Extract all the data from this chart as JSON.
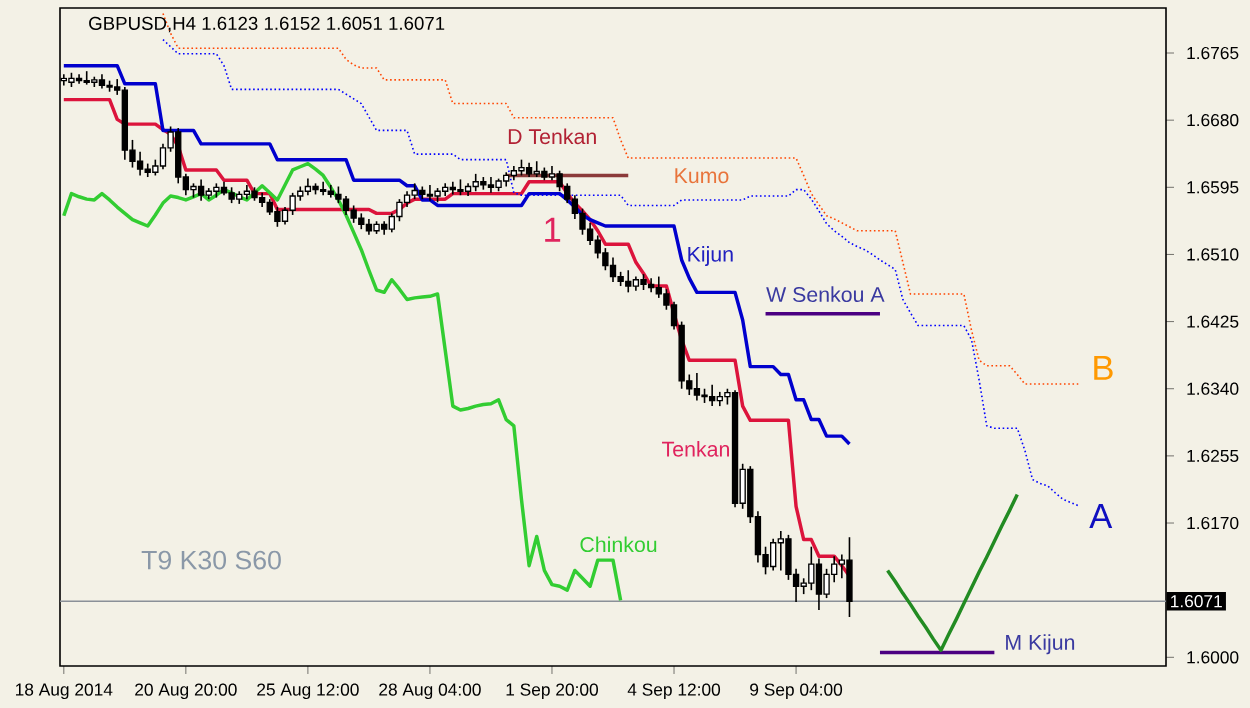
{
  "chart_data": {
    "type": "candlestick",
    "title": "GBPUSD,H4  1.6123 1.6152 1.6051 1.6071",
    "categories": [
      "18 Aug 2014",
      null,
      null,
      null,
      null,
      null,
      null,
      null,
      null,
      null,
      null,
      null,
      null,
      null,
      null,
      null,
      "20 Aug 20:00",
      null,
      null,
      null,
      null,
      null,
      null,
      null,
      null,
      null,
      null,
      null,
      null,
      null,
      null,
      null,
      "25 Aug 12:00",
      null,
      null,
      null,
      null,
      null,
      null,
      null,
      null,
      null,
      null,
      null,
      null,
      null,
      null,
      null,
      "28 Aug 04:00",
      null,
      null,
      null,
      null,
      null,
      null,
      null,
      null,
      null,
      null,
      null,
      null,
      null,
      null,
      null,
      "1 Sep 20:00",
      null,
      null,
      null,
      null,
      null,
      null,
      null,
      null,
      null,
      null,
      null,
      null,
      null,
      null,
      null,
      "4 Sep 12:00",
      null,
      null,
      null,
      null,
      null,
      null,
      null,
      null,
      null,
      null,
      null,
      null,
      null,
      null,
      null,
      "9 Sep 04:00",
      null,
      null,
      null,
      null,
      null,
      null,
      null,
      null,
      null,
      null,
      null,
      null,
      null,
      null,
      null,
      null,
      null,
      null,
      null,
      null,
      null,
      null,
      null,
      null,
      null,
      null,
      null,
      null,
      null,
      null,
      null,
      null,
      null,
      null,
      null,
      null,
      null,
      null,
      null,
      null,
      null,
      null,
      null,
      null,
      null,
      null,
      null,
      null
    ],
    "ohlc": [
      [
        1.673,
        1.6738,
        1.6724,
        1.6733
      ],
      [
        1.6728,
        1.674,
        1.6722,
        1.6733
      ],
      [
        1.6733,
        1.6738,
        1.6726,
        1.673
      ],
      [
        1.673,
        1.6742,
        1.6725,
        1.6728
      ],
      [
        1.6728,
        1.6735,
        1.6722,
        1.6731
      ],
      [
        1.6731,
        1.6738,
        1.672,
        1.6724
      ],
      [
        1.6724,
        1.673,
        1.6716,
        1.6722
      ],
      [
        1.6722,
        1.6732,
        1.6712,
        1.6718
      ],
      [
        1.6718,
        1.6722,
        1.663,
        1.6642
      ],
      [
        1.6642,
        1.6655,
        1.662,
        1.6628
      ],
      [
        1.6628,
        1.664,
        1.661,
        1.6618
      ],
      [
        1.6618,
        1.6625,
        1.6608,
        1.6614
      ],
      [
        1.6614,
        1.663,
        1.661,
        1.6622
      ],
      [
        1.6622,
        1.665,
        1.6618,
        1.6645
      ],
      [
        1.6645,
        1.6672,
        1.664,
        1.6665
      ],
      [
        1.6665,
        1.667,
        1.66,
        1.6608
      ],
      [
        1.6608,
        1.6612,
        1.6585,
        1.6592
      ],
      [
        1.6592,
        1.66,
        1.6582,
        1.6596
      ],
      [
        1.6596,
        1.6605,
        1.6578,
        1.6585
      ],
      [
        1.6585,
        1.6594,
        1.658,
        1.659
      ],
      [
        1.659,
        1.66,
        1.6582,
        1.6595
      ],
      [
        1.6595,
        1.6602,
        1.6585,
        1.6588
      ],
      [
        1.6588,
        1.6595,
        1.6575,
        1.658
      ],
      [
        1.658,
        1.659,
        1.6574,
        1.6586
      ],
      [
        1.6586,
        1.6598,
        1.658,
        1.659
      ],
      [
        1.659,
        1.6595,
        1.6578,
        1.6582
      ],
      [
        1.6582,
        1.6588,
        1.657,
        1.6576
      ],
      [
        1.6576,
        1.658,
        1.656,
        1.6564
      ],
      [
        1.6564,
        1.657,
        1.6545,
        1.6552
      ],
      [
        1.6552,
        1.657,
        1.6548,
        1.6566
      ],
      [
        1.6566,
        1.6588,
        1.656,
        1.6584
      ],
      [
        1.6584,
        1.6596,
        1.6578,
        1.659
      ],
      [
        1.659,
        1.6606,
        1.6585,
        1.6596
      ],
      [
        1.6596,
        1.66,
        1.6586,
        1.6592
      ],
      [
        1.6592,
        1.6602,
        1.6585,
        1.659
      ],
      [
        1.659,
        1.6598,
        1.6582,
        1.6586
      ],
      [
        1.6586,
        1.6596,
        1.6575,
        1.658
      ],
      [
        1.658,
        1.6584,
        1.656,
        1.6566
      ],
      [
        1.6566,
        1.6572,
        1.655,
        1.6556
      ],
      [
        1.6556,
        1.6562,
        1.6542,
        1.6548
      ],
      [
        1.6548,
        1.6555,
        1.6535,
        1.654
      ],
      [
        1.654,
        1.6552,
        1.6536,
        1.6548
      ],
      [
        1.6548,
        1.6552,
        1.6535,
        1.6542
      ],
      [
        1.6542,
        1.6562,
        1.6538,
        1.6558
      ],
      [
        1.6558,
        1.658,
        1.6552,
        1.6576
      ],
      [
        1.6576,
        1.659,
        1.657,
        1.6585
      ],
      [
        1.6585,
        1.66,
        1.658,
        1.6591
      ],
      [
        1.6591,
        1.6596,
        1.658,
        1.6586
      ],
      [
        1.6586,
        1.6598,
        1.6578,
        1.6584
      ],
      [
        1.6584,
        1.6594,
        1.6576,
        1.659
      ],
      [
        1.659,
        1.66,
        1.6584,
        1.6595
      ],
      [
        1.6595,
        1.6602,
        1.6586,
        1.6592
      ],
      [
        1.6592,
        1.6605,
        1.6585,
        1.659
      ],
      [
        1.659,
        1.66,
        1.6584,
        1.6596
      ],
      [
        1.6596,
        1.6612,
        1.659,
        1.6602
      ],
      [
        1.6602,
        1.6608,
        1.6592,
        1.6598
      ],
      [
        1.6598,
        1.6608,
        1.6588,
        1.6595
      ],
      [
        1.6595,
        1.6606,
        1.659,
        1.6603
      ],
      [
        1.6603,
        1.6614,
        1.6596,
        1.661
      ],
      [
        1.661,
        1.6622,
        1.6604,
        1.6616
      ],
      [
        1.6616,
        1.663,
        1.661,
        1.662
      ],
      [
        1.662,
        1.6626,
        1.6608,
        1.6612
      ],
      [
        1.6612,
        1.6628,
        1.6608,
        1.6615
      ],
      [
        1.6615,
        1.662,
        1.6604,
        1.6608
      ],
      [
        1.6608,
        1.6622,
        1.6604,
        1.6612
      ],
      [
        1.6612,
        1.6616,
        1.659,
        1.6596
      ],
      [
        1.6596,
        1.66,
        1.6575,
        1.658
      ],
      [
        1.658,
        1.6585,
        1.6555,
        1.6562
      ],
      [
        1.6562,
        1.6568,
        1.6535,
        1.6542
      ],
      [
        1.6542,
        1.655,
        1.6522,
        1.6528
      ],
      [
        1.6528,
        1.6534,
        1.6505,
        1.6512
      ],
      [
        1.6512,
        1.6518,
        1.649,
        1.6496
      ],
      [
        1.6496,
        1.6506,
        1.6475,
        1.6482
      ],
      [
        1.6482,
        1.6488,
        1.647,
        1.6476
      ],
      [
        1.6476,
        1.649,
        1.6462,
        1.647
      ],
      [
        1.647,
        1.6482,
        1.6464,
        1.6478
      ],
      [
        1.6478,
        1.6485,
        1.6465,
        1.6472
      ],
      [
        1.6472,
        1.648,
        1.6462,
        1.6468
      ],
      [
        1.6468,
        1.6482,
        1.6455,
        1.646
      ],
      [
        1.646,
        1.6466,
        1.644,
        1.6446
      ],
      [
        1.6446,
        1.645,
        1.6415,
        1.642
      ],
      [
        1.642,
        1.6425,
        1.634,
        1.635
      ],
      [
        1.635,
        1.6358,
        1.6332,
        1.634
      ],
      [
        1.634,
        1.636,
        1.6325,
        1.6332
      ],
      [
        1.6332,
        1.634,
        1.6322,
        1.633
      ],
      [
        1.633,
        1.6345,
        1.6318,
        1.6325
      ],
      [
        1.6325,
        1.6336,
        1.6318,
        1.633
      ],
      [
        1.633,
        1.634,
        1.632,
        1.6335
      ],
      [
        1.6335,
        1.6338,
        1.619,
        1.6195
      ],
      [
        1.6195,
        1.6245,
        1.6188,
        1.6238
      ],
      [
        1.6238,
        1.6242,
        1.617,
        1.6178
      ],
      [
        1.6178,
        1.6185,
        1.612,
        1.613
      ],
      [
        1.613,
        1.614,
        1.6105,
        1.6115
      ],
      [
        1.6115,
        1.615,
        1.611,
        1.6145
      ],
      [
        1.6145,
        1.616,
        1.611,
        1.615
      ],
      [
        1.615,
        1.6155,
        1.6098,
        1.6105
      ],
      [
        1.6105,
        1.6112,
        1.607,
        1.609
      ],
      [
        1.609,
        1.61,
        1.608,
        1.6094
      ],
      [
        1.6094,
        1.614,
        1.6085,
        1.6118
      ],
      [
        1.6118,
        1.6125,
        1.606,
        1.608
      ],
      [
        1.608,
        1.6112,
        1.6075,
        1.6105
      ],
      [
        1.6105,
        1.6128,
        1.6095,
        1.6118
      ],
      [
        1.6118,
        1.613,
        1.61,
        1.6123
      ],
      [
        1.6123,
        1.6152,
        1.6051,
        1.6071
      ],
      null,
      null,
      null,
      null,
      null,
      null,
      null,
      null,
      null,
      null,
      null,
      null,
      null,
      null,
      null,
      null,
      null,
      null,
      null,
      null,
      null,
      null,
      null,
      null,
      null,
      null,
      null,
      null,
      null,
      null,
      null,
      null,
      null,
      null,
      null,
      null,
      null,
      null,
      null,
      null,
      null
    ],
    "series": [
      {
        "type": "line",
        "color": "#dc143c",
        "values": [
          1.6706,
          1.6706,
          1.6706,
          1.6706,
          1.6706,
          1.6706,
          1.6706,
          1.6681,
          1.6675,
          1.6675,
          1.6675,
          1.6675,
          1.6675,
          1.6668,
          1.6662,
          1.6647,
          1.6617,
          1.6617,
          1.6617,
          1.6617,
          1.6617,
          1.6604,
          1.6604,
          1.6604,
          1.6604,
          1.6587,
          1.6587,
          1.6587,
          1.6567,
          1.6567,
          1.6567,
          1.6567,
          1.6567,
          1.6567,
          1.6567,
          1.6567,
          1.6567,
          1.6567,
          1.6567,
          1.6567,
          1.6567,
          1.6562,
          1.6562,
          1.6562,
          1.6567,
          1.6575,
          1.658,
          1.658,
          1.658,
          1.658,
          1.658,
          1.6587,
          1.6587,
          1.6587,
          1.6587,
          1.6587,
          1.6587,
          1.6587,
          1.6587,
          1.6587,
          1.6587,
          1.6602,
          1.6602,
          1.6602,
          1.6602,
          1.6602,
          1.6587,
          1.6575,
          1.6565,
          1.6554,
          1.654,
          1.6523,
          1.6523,
          1.6523,
          1.6523,
          1.65,
          1.6486,
          1.647,
          1.647,
          1.647,
          1.6435,
          1.6402,
          1.6376,
          1.6376,
          1.6376,
          1.6376,
          1.6376,
          1.6376,
          1.6376,
          1.6318,
          1.63,
          1.63,
          1.63,
          1.63,
          1.63,
          1.63,
          1.6191,
          1.6149,
          1.6149,
          1.6128,
          1.6128,
          1.6128,
          1.6116,
          1.6103,
          null,
          null,
          null,
          null,
          null,
          null,
          null,
          null,
          null,
          null,
          null,
          null,
          null,
          null,
          null,
          null,
          null,
          null,
          null,
          null,
          null,
          null,
          null,
          null,
          null,
          null,
          null,
          null,
          null,
          null,
          null,
          null,
          null,
          null,
          null,
          null,
          null,
          null,
          null,
          null,
          null
        ]
      },
      {
        "type": "line",
        "color": "#0000cd",
        "values": [
          1.6749,
          1.6749,
          1.6749,
          1.6749,
          1.6749,
          1.6749,
          1.6749,
          1.6749,
          1.6726,
          1.6726,
          1.6726,
          1.6726,
          1.6726,
          1.6667,
          1.6667,
          1.6667,
          1.6667,
          1.6667,
          1.665,
          1.665,
          1.665,
          1.665,
          1.665,
          1.665,
          1.665,
          1.665,
          1.665,
          1.665,
          1.663,
          1.663,
          1.663,
          1.663,
          1.663,
          1.663,
          1.663,
          1.663,
          1.663,
          1.663,
          1.6604,
          1.6604,
          1.6604,
          1.6604,
          1.6604,
          1.6604,
          1.6604,
          1.6597,
          1.6597,
          1.6579,
          1.6579,
          1.6572,
          1.6572,
          1.6572,
          1.6572,
          1.6572,
          1.6572,
          1.6572,
          1.6572,
          1.6572,
          1.6572,
          1.6572,
          1.6572,
          1.6587,
          1.6587,
          1.6587,
          1.6587,
          1.6587,
          1.6579,
          1.657,
          1.656,
          1.6554,
          1.655,
          1.6546,
          1.6546,
          1.6546,
          1.6546,
          1.6546,
          1.6546,
          1.6546,
          1.6546,
          1.6546,
          1.6546,
          1.6503,
          1.648,
          1.6462,
          1.6462,
          1.6462,
          1.6462,
          1.6462,
          1.6462,
          1.6427,
          1.6368,
          1.6368,
          1.6368,
          1.6368,
          1.6358,
          1.6358,
          1.6326,
          1.6326,
          1.6301,
          1.6301,
          1.628,
          1.628,
          1.628,
          1.627,
          null,
          null,
          null,
          null,
          null,
          null,
          null,
          null,
          null,
          null,
          null,
          null,
          null,
          null,
          null,
          null,
          null,
          null,
          null,
          null,
          null,
          null,
          null,
          null,
          null,
          null,
          null,
          null,
          null,
          null,
          null,
          null,
          null,
          null,
          null,
          null,
          null,
          null,
          null,
          null,
          null
        ]
      },
      {
        "type": "line",
        "color": "#32cd32",
        "values": [
          1.6559,
          1.6587,
          1.6583,
          1.658,
          1.6579,
          1.6587,
          1.6579,
          1.657,
          1.6562,
          1.6554,
          1.655,
          1.6546,
          1.656,
          1.6575,
          1.6584,
          1.6582,
          1.6579,
          1.6583,
          1.6587,
          1.6579,
          1.6585,
          1.6592,
          1.6588,
          1.6583,
          1.6579,
          1.6588,
          1.6597,
          1.6588,
          1.6579,
          1.6598,
          1.6617,
          1.6621,
          1.6625,
          1.6618,
          1.661,
          1.6595,
          1.6579,
          1.656,
          1.6538,
          1.6516,
          1.649,
          1.6465,
          1.6462,
          1.6478,
          1.6466,
          1.6453,
          1.6455,
          1.6456,
          1.6457,
          1.646,
          1.6389,
          1.6318,
          1.6313,
          1.6315,
          1.6318,
          1.632,
          1.6321,
          1.6326,
          1.6301,
          1.6293,
          1.62,
          1.6116,
          1.6153,
          1.611,
          1.6092,
          1.609,
          1.6085,
          1.611,
          1.61,
          1.609,
          1.6123,
          1.6123,
          1.6123,
          1.6072,
          null,
          null,
          null,
          null,
          null,
          null,
          null,
          null,
          null,
          null,
          null,
          null,
          null,
          null,
          null,
          null,
          null,
          null,
          null,
          null,
          null,
          null,
          null,
          null,
          null,
          null,
          null,
          null,
          null,
          null,
          null,
          null,
          null,
          null,
          null,
          null,
          null,
          null,
          null,
          null,
          null,
          null,
          null,
          null,
          null,
          null,
          null,
          null,
          null,
          null,
          null,
          null,
          null,
          null,
          null,
          null,
          null,
          null,
          null,
          null,
          null,
          null,
          null,
          null,
          null,
          null,
          null,
          null,
          null,
          null,
          null
        ]
      },
      {
        "type": "line",
        "color": "#0000ff",
        "line_style": "dotted",
        "values": [
          null,
          null,
          null,
          null,
          null,
          null,
          null,
          null,
          null,
          null,
          null,
          null,
          null,
          1.6782,
          1.6773,
          1.6764,
          1.6764,
          1.6764,
          1.6764,
          1.6764,
          1.6764,
          1.6749,
          1.6719,
          1.6719,
          1.6719,
          1.6719,
          1.6719,
          1.6719,
          1.6719,
          1.6719,
          1.6719,
          1.6719,
          1.6719,
          1.6719,
          1.6719,
          1.6719,
          1.6719,
          1.6713,
          1.6707,
          1.6701,
          1.6684,
          1.6667,
          1.6667,
          1.6667,
          1.6667,
          1.6667,
          1.6637,
          1.6637,
          1.6637,
          1.6637,
          1.6637,
          1.6637,
          1.663,
          1.663,
          1.663,
          1.663,
          1.663,
          1.663,
          1.663,
          1.6588,
          1.6585,
          1.6585,
          1.6585,
          1.6585,
          1.6585,
          1.6585,
          1.6585,
          1.6585,
          1.6585,
          1.6585,
          1.6585,
          1.6585,
          1.6585,
          1.6585,
          1.6572,
          1.6572,
          1.6572,
          1.6572,
          1.6572,
          1.6572,
          1.6572,
          1.6579,
          1.6579,
          1.6579,
          1.6579,
          1.6579,
          1.6579,
          1.6579,
          1.6579,
          1.6579,
          1.6584,
          1.6584,
          1.6584,
          1.6584,
          1.6584,
          1.6584,
          1.6592,
          1.6592,
          1.658,
          1.6565,
          1.6549,
          1.654,
          1.6533,
          1.6525,
          1.652,
          1.6516,
          1.651,
          1.6503,
          1.6497,
          1.6491,
          1.6453,
          1.6436,
          1.642,
          1.642,
          1.642,
          1.642,
          1.642,
          1.642,
          1.642,
          1.6402,
          1.6351,
          1.6293,
          1.629,
          1.629,
          1.629,
          1.629,
          1.6262,
          1.6225,
          1.622,
          1.6217,
          1.6208,
          1.62,
          1.6196,
          1.6192,
          null,
          null,
          null,
          null,
          null,
          null,
          null,
          null,
          null,
          null,
          null
        ]
      },
      {
        "type": "line",
        "color": "#ff4500",
        "line_style": "dotted",
        "values": [
          null,
          null,
          null,
          null,
          null,
          null,
          null,
          null,
          null,
          null,
          null,
          null,
          null,
          1.6815,
          1.679,
          1.6771,
          1.6771,
          1.6771,
          1.6771,
          1.6771,
          1.6771,
          1.6771,
          1.6771,
          1.6771,
          1.6771,
          1.6771,
          1.6771,
          1.6771,
          1.6771,
          1.6771,
          1.6771,
          1.6771,
          1.6771,
          1.6771,
          1.6771,
          1.6771,
          1.6771,
          1.6757,
          1.675,
          1.6746,
          1.6746,
          1.6746,
          1.6731,
          1.6731,
          1.6731,
          1.6731,
          1.6731,
          1.6731,
          1.6731,
          1.6731,
          1.6731,
          1.6701,
          1.6701,
          1.6701,
          1.6701,
          1.6701,
          1.6701,
          1.6701,
          1.6701,
          1.6683,
          1.6683,
          1.6683,
          1.6683,
          1.6683,
          1.6683,
          1.6683,
          1.6683,
          1.6683,
          1.6683,
          1.6683,
          1.6683,
          1.6683,
          1.6683,
          1.6655,
          1.6632,
          1.6632,
          1.6632,
          1.6632,
          1.6632,
          1.6632,
          1.6632,
          1.6632,
          1.6632,
          1.6632,
          1.6632,
          1.6632,
          1.6632,
          1.6632,
          1.6632,
          1.6632,
          1.6632,
          1.6632,
          1.6632,
          1.6632,
          1.6632,
          1.6632,
          1.6632,
          1.661,
          1.6587,
          1.6573,
          1.6559,
          1.6555,
          1.655,
          1.6545,
          1.654,
          1.654,
          1.654,
          1.654,
          1.654,
          1.654,
          1.65,
          1.646,
          1.646,
          1.646,
          1.646,
          1.646,
          1.646,
          1.646,
          1.646,
          1.6414,
          1.6376,
          1.6369,
          1.6369,
          1.6369,
          1.6369,
          1.6358,
          1.6346,
          1.6346,
          1.6346,
          1.6346,
          1.6346,
          1.6346,
          1.6346,
          1.6346,
          null,
          null,
          null,
          null,
          null,
          null,
          null,
          null,
          null,
          null,
          null
        ]
      },
      {
        "type": "line",
        "color": "#8b3a3a",
        "values": [
          null,
          null,
          null,
          null,
          null,
          null,
          null,
          null,
          null,
          null,
          null,
          null,
          null,
          null,
          null,
          null,
          null,
          null,
          null,
          null,
          null,
          null,
          null,
          null,
          null,
          null,
          null,
          null,
          null,
          null,
          null,
          null,
          null,
          null,
          null,
          null,
          null,
          null,
          null,
          null,
          null,
          null,
          null,
          null,
          null,
          null,
          null,
          null,
          null,
          null,
          null,
          null,
          null,
          null,
          null,
          null,
          null,
          null,
          1.661,
          1.661,
          1.661,
          1.661,
          1.661,
          1.661,
          1.661,
          1.661,
          1.661,
          1.661,
          1.661,
          1.661,
          1.661,
          1.661,
          1.661,
          1.661,
          1.661,
          null,
          null,
          null,
          null,
          null,
          null,
          null,
          null,
          null,
          null,
          null,
          null,
          null,
          null,
          null,
          null,
          null,
          null,
          null,
          null,
          null,
          null,
          null,
          null,
          null,
          null,
          null,
          null,
          null,
          null,
          null,
          null,
          null,
          null,
          null,
          null,
          null,
          null,
          null,
          null,
          null,
          null,
          null,
          null,
          null,
          null,
          null,
          null,
          null,
          null,
          null,
          null,
          null,
          null,
          null,
          null,
          null,
          null,
          null,
          null,
          null,
          null,
          null,
          null,
          null,
          null,
          null,
          null,
          null,
          null
        ]
      },
      {
        "type": "line",
        "color": "#4b0082",
        "values": [
          null,
          null,
          null,
          null,
          null,
          null,
          null,
          null,
          null,
          null,
          null,
          null,
          null,
          null,
          null,
          null,
          null,
          null,
          null,
          null,
          null,
          null,
          null,
          null,
          null,
          null,
          null,
          null,
          null,
          null,
          null,
          null,
          null,
          null,
          null,
          null,
          null,
          null,
          null,
          null,
          null,
          null,
          null,
          null,
          null,
          null,
          null,
          null,
          null,
          null,
          null,
          null,
          null,
          null,
          null,
          null,
          null,
          null,
          null,
          null,
          null,
          null,
          null,
          null,
          null,
          null,
          null,
          null,
          null,
          null,
          null,
          null,
          null,
          null,
          null,
          null,
          null,
          null,
          null,
          null,
          null,
          null,
          null,
          null,
          null,
          null,
          null,
          null,
          null,
          null,
          null,
          null,
          1.6435,
          1.6435,
          1.6435,
          1.6435,
          1.6435,
          1.6435,
          1.6435,
          1.6435,
          1.6435,
          1.6435,
          1.6435,
          1.6435,
          1.6435,
          1.6435,
          1.6435,
          1.6435,
          null,
          null,
          null,
          null,
          null,
          null,
          null,
          null,
          null,
          null,
          null,
          null,
          null,
          null,
          null,
          null,
          null,
          null,
          null,
          null,
          null,
          null,
          null,
          null,
          null,
          null,
          null,
          null,
          null,
          null,
          null,
          null,
          null,
          null,
          null,
          null,
          null
        ]
      },
      {
        "type": "line",
        "color": "#4b0082",
        "values": [
          null,
          null,
          null,
          null,
          null,
          null,
          null,
          null,
          null,
          null,
          null,
          null,
          null,
          null,
          null,
          null,
          null,
          null,
          null,
          null,
          null,
          null,
          null,
          null,
          null,
          null,
          null,
          null,
          null,
          null,
          null,
          null,
          null,
          null,
          null,
          null,
          null,
          null,
          null,
          null,
          null,
          null,
          null,
          null,
          null,
          null,
          null,
          null,
          null,
          null,
          null,
          null,
          null,
          null,
          null,
          null,
          null,
          null,
          null,
          null,
          null,
          null,
          null,
          null,
          null,
          null,
          null,
          null,
          null,
          null,
          null,
          null,
          null,
          null,
          null,
          null,
          null,
          null,
          null,
          null,
          null,
          null,
          null,
          null,
          null,
          null,
          null,
          null,
          null,
          null,
          null,
          null,
          null,
          null,
          null,
          null,
          null,
          null,
          null,
          null,
          null,
          null,
          null,
          null,
          null,
          null,
          null,
          1.6006,
          1.6006,
          1.6006,
          1.6006,
          1.6006,
          1.6006,
          1.6006,
          1.6006,
          1.6006,
          1.6006,
          1.6006,
          1.6006,
          1.6006,
          1.6006,
          1.6006,
          1.6006,
          null,
          null,
          null,
          null,
          null,
          null,
          null,
          null,
          null,
          null,
          null,
          null,
          null,
          null,
          null,
          null,
          null,
          null,
          null,
          null,
          null,
          null
        ]
      },
      {
        "type": "line",
        "color": "#228b22",
        "values": [
          null,
          null,
          null,
          null,
          null,
          null,
          null,
          null,
          null,
          null,
          null,
          null,
          null,
          null,
          null,
          null,
          null,
          null,
          null,
          null,
          null,
          null,
          null,
          null,
          null,
          null,
          null,
          null,
          null,
          null,
          null,
          null,
          null,
          null,
          null,
          null,
          null,
          null,
          null,
          null,
          null,
          null,
          null,
          null,
          null,
          null,
          null,
          null,
          null,
          null,
          null,
          null,
          null,
          null,
          null,
          null,
          null,
          null,
          null,
          null,
          null,
          null,
          null,
          null,
          null,
          null,
          null,
          null,
          null,
          null,
          null,
          null,
          null,
          null,
          null,
          null,
          null,
          null,
          null,
          null,
          null,
          null,
          null,
          null,
          null,
          null,
          null,
          null,
          null,
          null,
          null,
          null,
          null,
          null,
          null,
          null,
          null,
          null,
          null,
          null,
          null,
          null,
          null,
          null,
          null,
          null,
          null,
          null,
          1.611,
          1.6096,
          1.6081,
          1.6067,
          1.6052,
          1.6038,
          1.6023,
          1.6009,
          1.6029,
          1.6048,
          1.6068,
          1.6088,
          1.6108,
          1.6127,
          1.6147,
          1.6167,
          1.6186,
          1.6206,
          null,
          null,
          null,
          null,
          null,
          null,
          null,
          null,
          null,
          null,
          null,
          null,
          null,
          null,
          null,
          null,
          null,
          null,
          null
        ]
      }
    ],
    "ylim": [
      1.5989,
      1.6822
    ],
    "yticks": [
      {
        "value": 1.6,
        "label": "1.6000"
      },
      {
        "value": 1.617,
        "label": "1.6170"
      },
      1.6255,
      {
        "value": 1.634,
        "label": "1.6340"
      },
      1.6425,
      {
        "value": 1.651,
        "label": "1.6510"
      },
      1.6595,
      {
        "value": 1.668,
        "label": "1.6680"
      },
      1.6765
    ],
    "ref_lines": [
      {
        "axis": "y",
        "value": 1.6071,
        "label": "1.6071",
        "color": "#8a9098"
      }
    ],
    "annotations": [
      "D Tenkan",
      "Kumo",
      "1",
      "Kijun",
      "W Senkou A",
      "Tenkan",
      "Chinkou",
      "B",
      "A",
      "M Kijun",
      "T9 K30 S60"
    ]
  }
}
